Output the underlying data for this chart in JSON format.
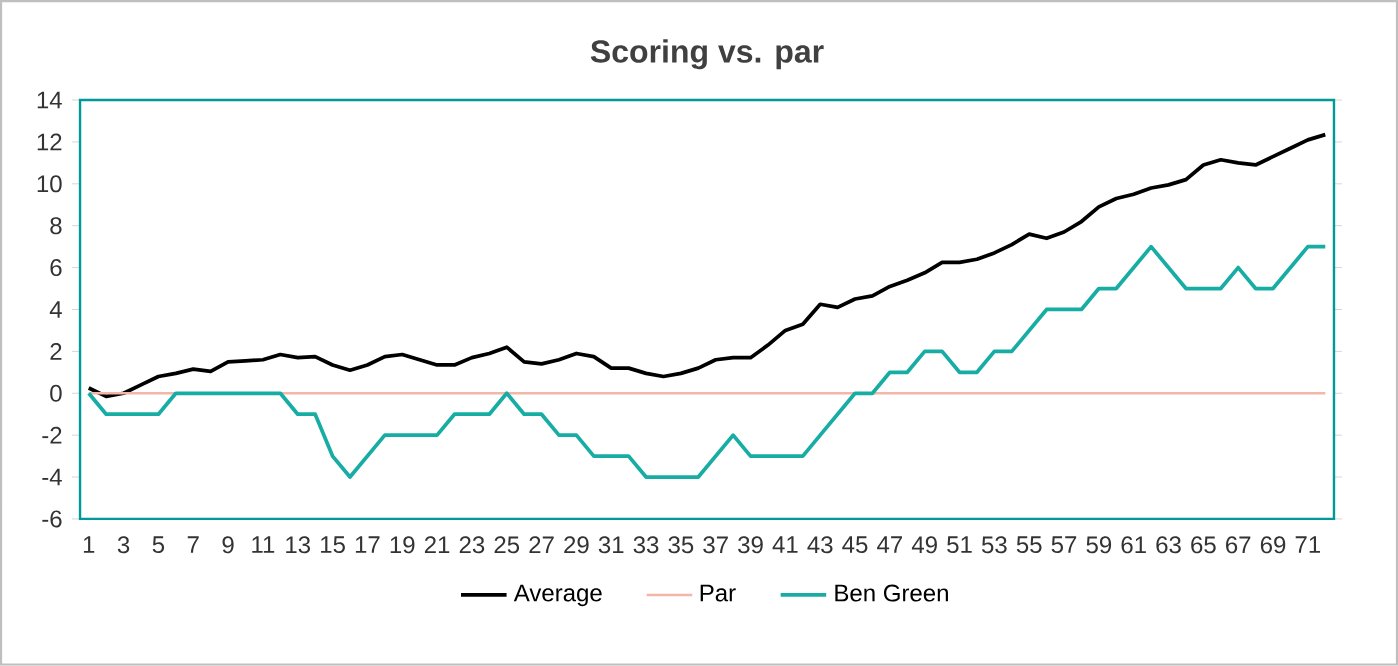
{
  "chart_data": {
    "type": "line",
    "title": "Scoring vs. par",
    "categories": [
      "1",
      null,
      "3",
      null,
      "5",
      null,
      "7",
      null,
      "9",
      null,
      "11",
      null,
      "13",
      null,
      "15",
      null,
      "17",
      null,
      "19",
      null,
      "21",
      null,
      "23",
      null,
      "25",
      null,
      "27",
      null,
      "29",
      null,
      "31",
      null,
      "33",
      null,
      "35",
      null,
      "37",
      null,
      "39",
      null,
      "41",
      null,
      "43",
      null,
      "45",
      null,
      "47",
      null,
      "49",
      null,
      "51",
      null,
      "53",
      null,
      "55",
      null,
      "57",
      null,
      "59",
      null,
      "61",
      null,
      "63",
      null,
      "65",
      null,
      "67",
      null,
      "69",
      null,
      "71",
      null
    ],
    "series": [
      {
        "name": "Average",
        "color": "#000000",
        "values": [
          0.25,
          -0.15,
          0,
          0.4,
          0.8,
          0.95,
          1.15,
          1.05,
          1.5,
          1.55,
          1.6,
          1.85,
          1.7,
          1.75,
          1.35,
          1.1,
          1.35,
          1.75,
          1.85,
          1.6,
          1.35,
          1.35,
          1.7,
          1.9,
          2.2,
          1.5,
          1.4,
          1.6,
          1.9,
          1.75,
          1.2,
          1.2,
          0.95,
          0.8,
          0.95,
          1.2,
          1.6,
          1.7,
          1.7,
          2.3,
          3.0,
          3.3,
          4.25,
          4.1,
          4.5,
          4.65,
          5.1,
          5.4,
          5.75,
          6.25,
          6.25,
          6.4,
          6.7,
          7.1,
          7.6,
          7.4,
          7.7,
          8.2,
          8.9,
          9.3,
          9.5,
          9.8,
          9.95,
          10.2,
          10.9,
          11.15,
          11.0,
          10.9,
          11.3,
          11.7,
          12.1,
          12.35
        ]
      },
      {
        "name": "Par",
        "color": "#f4b6a8",
        "values": [
          0,
          0,
          0,
          0,
          0,
          0,
          0,
          0,
          0,
          0,
          0,
          0,
          0,
          0,
          0,
          0,
          0,
          0,
          0,
          0,
          0,
          0,
          0,
          0,
          0,
          0,
          0,
          0,
          0,
          0,
          0,
          0,
          0,
          0,
          0,
          0,
          0,
          0,
          0,
          0,
          0,
          0,
          0,
          0,
          0,
          0,
          0,
          0,
          0,
          0,
          0,
          0,
          0,
          0,
          0,
          0,
          0,
          0,
          0,
          0,
          0,
          0,
          0,
          0,
          0,
          0,
          0,
          0,
          0,
          0,
          0,
          0
        ]
      },
      {
        "name": "Ben Green",
        "color": "#17ada5",
        "values": [
          0,
          -1,
          -1,
          -1,
          -1,
          0,
          0,
          0,
          0,
          0,
          0,
          0,
          -1,
          -1,
          -3,
          -4,
          -3,
          -2,
          -2,
          -2,
          -2,
          -1,
          -1,
          -1,
          0,
          -1,
          -1,
          -2,
          -2,
          -3,
          -3,
          -3,
          -4,
          -4,
          -4,
          -4,
          -3,
          -2,
          -3,
          -3,
          -3,
          -3,
          -2,
          -1,
          0,
          0,
          1,
          1,
          2,
          2,
          1,
          1,
          2,
          2,
          3,
          4,
          4,
          4,
          5,
          5,
          6,
          7,
          6,
          5,
          5,
          5,
          6,
          5,
          5,
          6,
          7,
          7
        ]
      }
    ],
    "ylim": [
      -6,
      14
    ],
    "yticks": [
      -6,
      -4,
      -2,
      0,
      2,
      4,
      6,
      8,
      10,
      12,
      14
    ],
    "grid": false,
    "legend": "bottom"
  }
}
